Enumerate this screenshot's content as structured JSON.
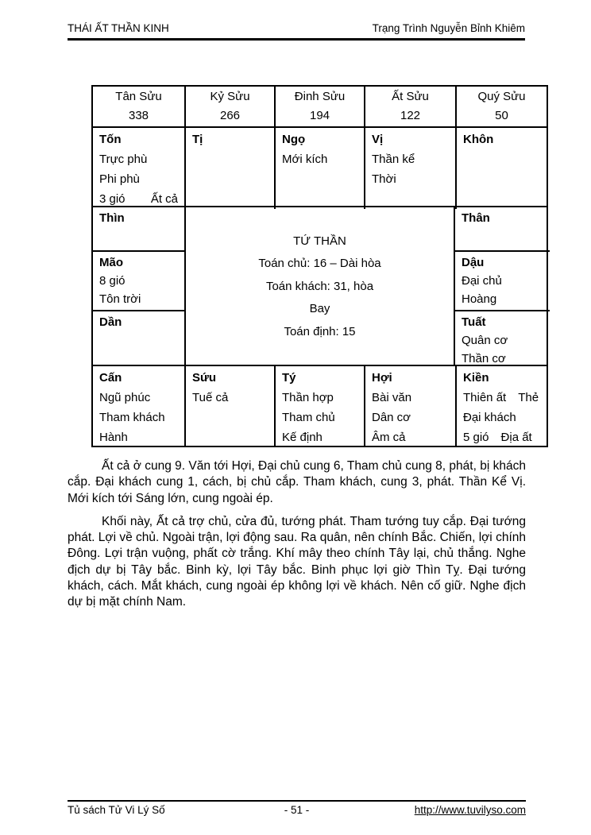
{
  "header": {
    "left": "THÁI ẤT THẦN KINH",
    "right": "Trạng Trình Nguyễn Bỉnh Khiêm"
  },
  "table": {
    "header_cells": [
      {
        "name": "Tân Sửu",
        "value": "338"
      },
      {
        "name": "Kỷ Sửu",
        "value": "266"
      },
      {
        "name": "Đinh Sửu",
        "value": "194"
      },
      {
        "name": "Ất Sửu",
        "value": "122"
      },
      {
        "name": "Quý Sửu",
        "value": "50"
      }
    ],
    "row2": [
      {
        "label": "Tốn",
        "lines": [
          "Trực phù",
          "Phi phù"
        ],
        "split": {
          "left": "3 gió",
          "right": "Ất cả"
        }
      },
      {
        "label": "Tị",
        "lines": []
      },
      {
        "label": "Ngọ",
        "lines": [
          "Mới kích"
        ]
      },
      {
        "label": "Vị",
        "lines": [
          "Thần kể",
          "Thời"
        ]
      },
      {
        "label": "Khôn",
        "lines": []
      }
    ],
    "left_cells": [
      {
        "label": "Thìn",
        "lines": []
      },
      {
        "label": "Mão",
        "lines": [
          "8 gió",
          "Tôn trời"
        ]
      },
      {
        "label": "Dần",
        "lines": []
      }
    ],
    "center": {
      "title": "TỨ THẦN",
      "lines": [
        "Toán chủ: 16 – Dài hòa",
        "Toán khách: 31, hòa",
        "Bay",
        "Toán định: 15"
      ]
    },
    "right_cells": [
      {
        "label": "Thân",
        "lines": []
      },
      {
        "label": "Dậu",
        "lines": [
          "Đại chủ",
          "Hoàng"
        ]
      },
      {
        "label": "Tuất",
        "lines": [
          "Quân cơ",
          "Thần cơ"
        ]
      }
    ],
    "bottom_row": [
      {
        "label": "Cấn",
        "lines": [
          "Ngũ phúc",
          "Tham khách",
          "Hành"
        ]
      },
      {
        "label": "Sứu",
        "lines": [
          "Tuế cả"
        ]
      },
      {
        "label": "Tý",
        "lines": [
          "Thần hợp",
          "Tham chủ",
          "Kế định"
        ]
      },
      {
        "label": "Hợi",
        "lines": [
          "Bài văn",
          "Dân cơ",
          "Âm cả"
        ]
      },
      {
        "label": "Kiền",
        "split1": {
          "left": "Thiên ất",
          "right": "Thẻ"
        },
        "mid": "Đại khách",
        "split2": {
          "left": "5 gió",
          "right": "Địa ất"
        }
      }
    ]
  },
  "paragraphs": [
    "Ất cả ở cung 9. Văn tới Hợi, Đại chủ cung 6, Tham chủ cung 8, phát, bị khách cắp. Đại khách cung 1, cách, bị chủ cắp. Tham khách, cung 3, phát. Thần Kể Vị. Mới kích tới Sáng lớn, cung ngoài ép.",
    "Khối này, Ất cả trợ chủ, cửa đủ, tướng phát. Tham tướng tuy cắp. Đại tướng phát. Lợi về chủ. Ngoài trận, lợi động sau. Ra quân, nên chính Bắc. Chiến, lợi chính Đông. Lợi trận vuộng, phất cờ trắng. Khí mây theo chính Tây lại, chủ thắng. Nghe địch dự bị Tây bắc. Binh kỳ, lợi Tây bắc. Binh phục lợi giờ Thìn Tỵ. Đại tướng khách, cách. Mắt khách, cung ngoài ép không lợi về khách. Nên cố giữ. Nghe địch dự bị mặt chính Nam."
  ],
  "footer": {
    "left": "Tủ sách Tử Vi Lý Số",
    "center": "- 51 -",
    "right": "http://www.tuvilyso.com"
  }
}
